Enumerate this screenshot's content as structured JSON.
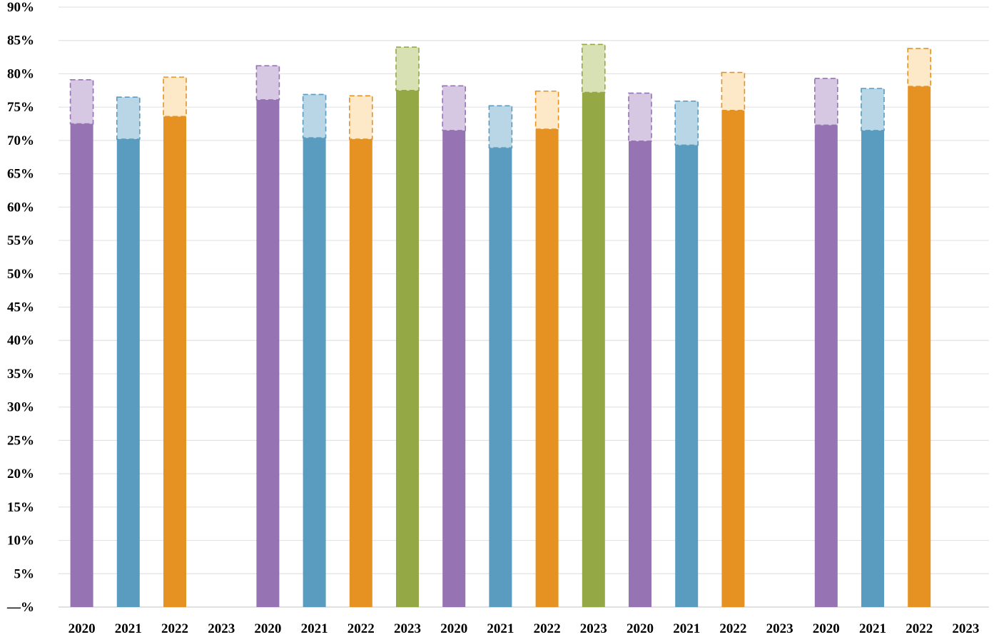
{
  "chart_data": {
    "type": "bar",
    "title": "",
    "xlabel": "",
    "ylabel": "",
    "ylim": [
      0,
      90
    ],
    "yticks": [
      0,
      5,
      10,
      15,
      20,
      25,
      30,
      35,
      40,
      45,
      50,
      55,
      60,
      65,
      70,
      75,
      80,
      85,
      90
    ],
    "ytick_labels": [
      "—%",
      "5%",
      "10%",
      "15%",
      "20%",
      "25%",
      "30%",
      "35%",
      "40%",
      "45%",
      "50%",
      "55%",
      "60%",
      "65%",
      "70%",
      "75%",
      "80%",
      "85%",
      "90%"
    ],
    "grid": true,
    "legend": "none",
    "colors": {
      "2020": {
        "solid": "#9673b3",
        "light": "#d6c7e3",
        "edge": "#9673b3"
      },
      "2021": {
        "solid": "#599cbf",
        "light": "#b9d6e6",
        "edge": "#599cbf"
      },
      "2022": {
        "solid": "#e69222",
        "light": "#fde9c8",
        "edge": "#e69222"
      },
      "2023": {
        "solid": "#95a846",
        "light": "#d8e1b4",
        "edge": "#95a846"
      }
    },
    "categories": [
      "2020",
      "2021",
      "2022",
      "2023",
      "2020",
      "2021",
      "2022",
      "2023",
      "2020",
      "2021",
      "2022",
      "2023",
      "2020",
      "2021",
      "2022",
      "2023",
      "2020",
      "2021",
      "2022",
      "2023"
    ],
    "series": [
      {
        "values": [
          72.5,
          70.2,
          73.6,
          null,
          76.1,
          70.4,
          70.2,
          77.5,
          71.5,
          68.9,
          71.7,
          77.2,
          69.9,
          69.3,
          74.5,
          null,
          72.3,
          71.5,
          78.1,
          null
        ]
      },
      {
        "values": [
          79.1,
          76.5,
          79.5,
          null,
          81.2,
          76.9,
          76.7,
          84.0,
          78.2,
          75.2,
          77.4,
          84.4,
          77.1,
          75.9,
          80.2,
          null,
          79.3,
          77.8,
          83.8,
          null
        ]
      }
    ]
  }
}
